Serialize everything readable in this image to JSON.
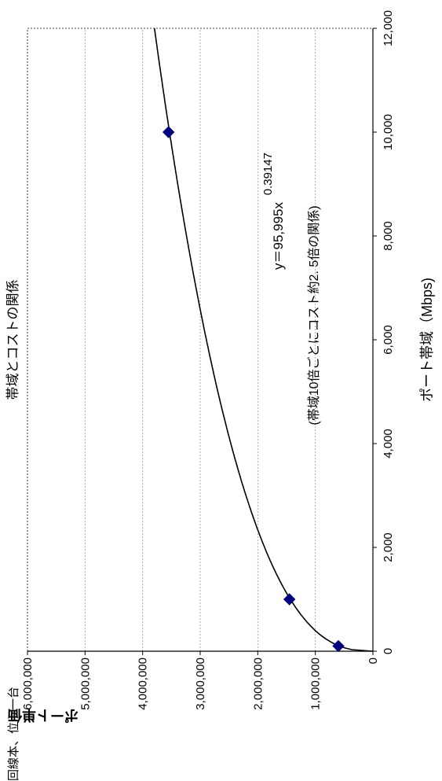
{
  "chart_data": {
    "type": "scatter",
    "title": "帯域とコストの関係",
    "xlabel": "ポート帯域（Mbps)",
    "ylabel": "ポート単価（円）",
    "xlim": [
      0,
      12000
    ],
    "ylim": [
      0,
      6000000
    ],
    "x_ticks": [
      "0",
      "2,000",
      "4,000",
      "6,000",
      "8,000",
      "10,000",
      "12,000"
    ],
    "y_ticks": [
      "0",
      "1,000,000",
      "2,000,000",
      "3,000,000",
      "4,000,000",
      "5,000,000",
      "6,000,000"
    ],
    "grid": "y-major dotted",
    "orientation": "rotated 90° counter-clockwise",
    "series": [
      {
        "x": [
          100,
          1000,
          10000
        ],
        "y": [
          600000,
          1450000,
          3550000
        ],
        "marker": "diamond",
        "color": "#00007f"
      }
    ],
    "trendline": {
      "type": "power",
      "coefficient": 95995,
      "exponent": 0.39147,
      "color": "#000000"
    },
    "annotations": {
      "equation_base": "y＝95,995x",
      "equation_exponent": "0.39147",
      "note": "(帯域10倍ごとにコスト約2. 5倍の関係)"
    },
    "footer_text": "回線本、位う一台"
  }
}
